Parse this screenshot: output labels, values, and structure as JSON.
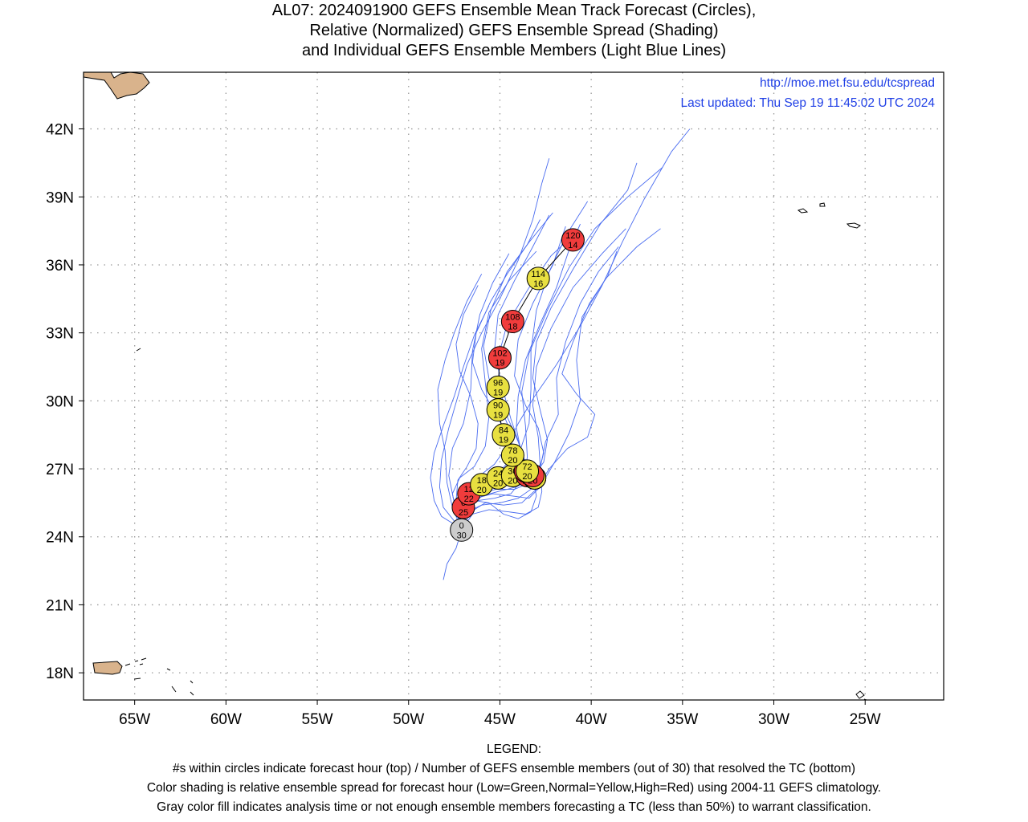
{
  "title": {
    "line1": "AL07: 2024091900 GEFS Ensemble Mean Track Forecast (Circles),",
    "line2": "Relative (Normalized) GEFS Ensemble Spread (Shading)",
    "line3": "and Individual GEFS Ensemble Members (Light Blue Lines)"
  },
  "info": {
    "url": "http://moe.met.fsu.edu/tcspread",
    "updated": "Last updated: Thu Sep 19 11:45:02 UTC 2024"
  },
  "axes": {
    "lat_ticks": [
      {
        "value": 18,
        "label": "18N"
      },
      {
        "value": 21,
        "label": "21N"
      },
      {
        "value": 24,
        "label": "24N"
      },
      {
        "value": 27,
        "label": "27N"
      },
      {
        "value": 30,
        "label": "30N"
      },
      {
        "value": 33,
        "label": "33N"
      },
      {
        "value": 36,
        "label": "36N"
      },
      {
        "value": 39,
        "label": "39N"
      },
      {
        "value": 42,
        "label": "42N"
      }
    ],
    "lon_ticks": [
      {
        "value": -65,
        "label": "65W"
      },
      {
        "value": -60,
        "label": "60W"
      },
      {
        "value": -55,
        "label": "55W"
      },
      {
        "value": -50,
        "label": "50W"
      },
      {
        "value": -45,
        "label": "45W"
      },
      {
        "value": -40,
        "label": "40W"
      },
      {
        "value": -35,
        "label": "35W"
      },
      {
        "value": -30,
        "label": "30W"
      },
      {
        "value": -25,
        "label": "25W"
      }
    ],
    "lon_range": [
      -67.8,
      -20.7
    ],
    "lat_range": [
      16.8,
      44.5
    ],
    "grid": true
  },
  "colors": {
    "low_spread": "#2fcf2f",
    "normal_spread": "#e8e040",
    "high_spread": "#f03c3c",
    "analysis": "#cccccc",
    "member_lines": "#4a6cf0",
    "land": "#d9b38c",
    "info_text": "#1f3fe6"
  },
  "mean_track": [
    {
      "hour": 0,
      "members": 30,
      "lat": 24.3,
      "lon": -47.1,
      "spread": "gray"
    },
    {
      "hour": 6,
      "members": 25,
      "lat": 25.3,
      "lon": -47.0,
      "spread": "red"
    },
    {
      "hour": 12,
      "members": 22,
      "lat": 25.9,
      "lon": -46.7,
      "spread": "red"
    },
    {
      "hour": 18,
      "members": 20,
      "lat": 26.3,
      "lon": -46.0,
      "spread": "yellow"
    },
    {
      "hour": 24,
      "members": 20,
      "lat": 26.6,
      "lon": -45.1,
      "spread": "yellow"
    },
    {
      "hour": 30,
      "members": 20,
      "lat": 26.7,
      "lon": -44.3,
      "spread": "yellow"
    },
    {
      "hour": 36,
      "members": 20,
      "lat": 26.7,
      "lon": -43.5,
      "spread": "red"
    },
    {
      "hour": 42,
      "members": 20,
      "lat": 26.9,
      "lon": -43.6,
      "spread": "red"
    },
    {
      "hour": 48,
      "members": 20,
      "lat": 26.6,
      "lon": -43.1,
      "spread": "yellow"
    },
    {
      "hour": 54,
      "members": 20,
      "lat": 26.6,
      "lon": -43.1,
      "spread": "yellow"
    },
    {
      "hour": 60,
      "members": 20,
      "lat": 26.6,
      "lon": -43.1,
      "spread": "yellow"
    },
    {
      "hour": 66,
      "members": 20,
      "lat": 26.7,
      "lon": -43.2,
      "spread": "red"
    },
    {
      "hour": 72,
      "members": 20,
      "lat": 26.9,
      "lon": -43.5,
      "spread": "yellow"
    },
    {
      "hour": 78,
      "members": 20,
      "lat": 27.6,
      "lon": -44.3,
      "spread": "yellow"
    },
    {
      "hour": 84,
      "members": 19,
      "lat": 28.5,
      "lon": -44.8,
      "spread": "yellow"
    },
    {
      "hour": 90,
      "members": 19,
      "lat": 29.6,
      "lon": -45.1,
      "spread": "yellow"
    },
    {
      "hour": 96,
      "members": 19,
      "lat": 30.6,
      "lon": -45.1,
      "spread": "yellow"
    },
    {
      "hour": 102,
      "members": 19,
      "lat": 31.9,
      "lon": -45.0,
      "spread": "red"
    },
    {
      "hour": 108,
      "members": 18,
      "lat": 33.5,
      "lon": -44.3,
      "spread": "red"
    },
    {
      "hour": 114,
      "members": 16,
      "lat": 35.4,
      "lon": -42.9,
      "spread": "yellow"
    },
    {
      "hour": 120,
      "members": 14,
      "lat": 37.1,
      "lon": -41.0,
      "spread": "red"
    }
  ],
  "member_tracks": [
    [
      [
        -47.1,
        24.3
      ],
      [
        -46.9,
        25.4
      ],
      [
        -46.5,
        26.0
      ],
      [
        -45.7,
        26.3
      ],
      [
        -44.8,
        26.6
      ],
      [
        -44.0,
        26.8
      ],
      [
        -43.6,
        27.3
      ],
      [
        -44.0,
        28.2
      ],
      [
        -44.6,
        29.3
      ],
      [
        -45.0,
        30.5
      ],
      [
        -45.1,
        31.9
      ],
      [
        -44.6,
        33.4
      ],
      [
        -43.4,
        35.0
      ],
      [
        -42.2,
        36.4
      ],
      [
        -41.0,
        37.3
      ]
    ],
    [
      [
        -47.1,
        24.3
      ],
      [
        -47.2,
        25.2
      ],
      [
        -46.9,
        26.0
      ],
      [
        -46.0,
        26.5
      ],
      [
        -45.0,
        26.9
      ],
      [
        -44.3,
        27.5
      ],
      [
        -44.4,
        28.6
      ],
      [
        -45.0,
        29.8
      ],
      [
        -45.6,
        31.0
      ],
      [
        -45.9,
        32.4
      ],
      [
        -45.5,
        34.0
      ],
      [
        -44.6,
        35.7
      ],
      [
        -43.4,
        37.0
      ],
      [
        -42.1,
        38.3
      ]
    ],
    [
      [
        -47.1,
        24.3
      ],
      [
        -46.7,
        25.3
      ],
      [
        -46.1,
        25.9
      ],
      [
        -45.2,
        26.1
      ],
      [
        -44.2,
        26.1
      ],
      [
        -43.3,
        26.4
      ],
      [
        -42.8,
        27.2
      ],
      [
        -42.9,
        28.4
      ],
      [
        -43.2,
        29.8
      ],
      [
        -43.0,
        31.5
      ],
      [
        -42.2,
        33.2
      ],
      [
        -41.0,
        35.0
      ],
      [
        -39.4,
        36.5
      ],
      [
        -38.1,
        37.6
      ]
    ],
    [
      [
        -47.1,
        24.3
      ],
      [
        -47.4,
        25.1
      ],
      [
        -47.6,
        25.9
      ],
      [
        -47.2,
        26.6
      ],
      [
        -46.4,
        27.1
      ],
      [
        -45.8,
        28.0
      ],
      [
        -45.6,
        29.3
      ],
      [
        -45.8,
        30.8
      ],
      [
        -46.0,
        32.3
      ],
      [
        -45.6,
        33.9
      ],
      [
        -44.5,
        35.3
      ],
      [
        -43.0,
        36.6
      ]
    ],
    [
      [
        -47.1,
        24.3
      ],
      [
        -46.8,
        25.2
      ],
      [
        -46.3,
        25.7
      ],
      [
        -45.4,
        25.9
      ],
      [
        -44.3,
        25.8
      ],
      [
        -43.4,
        25.7
      ],
      [
        -42.8,
        26.2
      ],
      [
        -42.0,
        27.3
      ],
      [
        -41.2,
        28.6
      ],
      [
        -40.6,
        30.0
      ],
      [
        -40.8,
        31.8
      ],
      [
        -40.5,
        33.7
      ],
      [
        -39.2,
        35.4
      ],
      [
        -37.5,
        36.8
      ],
      [
        -36.2,
        37.6
      ]
    ],
    [
      [
        -47.1,
        24.3
      ],
      [
        -47.5,
        25.5
      ],
      [
        -47.8,
        26.7
      ],
      [
        -47.6,
        27.9
      ],
      [
        -47.0,
        29.0
      ],
      [
        -46.6,
        30.5
      ],
      [
        -46.5,
        32.2
      ],
      [
        -46.1,
        33.8
      ],
      [
        -45.4,
        35.2
      ],
      [
        -44.5,
        36.5
      ]
    ],
    [
      [
        -47.1,
        24.3
      ],
      [
        -46.6,
        25.1
      ],
      [
        -45.8,
        25.5
      ],
      [
        -44.8,
        25.4
      ],
      [
        -43.8,
        25.5
      ],
      [
        -43.0,
        26.1
      ],
      [
        -42.3,
        27.0
      ],
      [
        -41.3,
        27.9
      ],
      [
        -40.2,
        28.4
      ],
      [
        -39.8,
        29.4
      ],
      [
        -40.8,
        30.3
      ],
      [
        -41.6,
        31.2
      ],
      [
        -41.0,
        32.6
      ],
      [
        -40.1,
        34.3
      ],
      [
        -39.1,
        35.5
      ],
      [
        -38.6,
        36.6
      ]
    ],
    [
      [
        -47.1,
        24.3
      ],
      [
        -47.6,
        24.8
      ],
      [
        -48.1,
        25.3
      ],
      [
        -48.3,
        26.2
      ],
      [
        -48.2,
        27.4
      ],
      [
        -47.8,
        28.8
      ],
      [
        -47.3,
        30.2
      ],
      [
        -46.8,
        31.6
      ],
      [
        -46.0,
        33.0
      ],
      [
        -45.0,
        34.5
      ],
      [
        -44.0,
        36.2
      ],
      [
        -43.2,
        38.0
      ],
      [
        -42.7,
        39.6
      ],
      [
        -42.3,
        40.7
      ]
    ],
    [
      [
        -47.1,
        24.3
      ],
      [
        -46.9,
        25.2
      ],
      [
        -46.2,
        25.6
      ],
      [
        -45.3,
        25.7
      ],
      [
        -44.4,
        25.9
      ],
      [
        -43.8,
        26.5
      ],
      [
        -43.5,
        27.5
      ],
      [
        -43.6,
        28.9
      ],
      [
        -43.8,
        30.4
      ],
      [
        -43.4,
        32.1
      ],
      [
        -42.4,
        34.0
      ],
      [
        -41.2,
        35.9
      ],
      [
        -39.8,
        37.6
      ],
      [
        -38.0,
        39.0
      ],
      [
        -36.1,
        40.3
      ]
    ],
    [
      [
        -47.1,
        24.3
      ],
      [
        -47.3,
        25.0
      ],
      [
        -47.2,
        25.6
      ],
      [
        -46.5,
        26.0
      ],
      [
        -45.4,
        26.2
      ],
      [
        -44.4,
        26.3
      ],
      [
        -43.8,
        26.9
      ],
      [
        -43.9,
        28.0
      ],
      [
        -44.4,
        29.2
      ],
      [
        -44.9,
        30.7
      ],
      [
        -45.3,
        32.2
      ],
      [
        -45.1,
        33.8
      ],
      [
        -44.2,
        35.3
      ],
      [
        -43.2,
        36.8
      ],
      [
        -42.3,
        38.2
      ]
    ],
    [
      [
        -47.1,
        24.3
      ],
      [
        -47.6,
        25.3
      ],
      [
        -47.9,
        26.4
      ],
      [
        -48.0,
        27.8
      ],
      [
        -48.3,
        29.0
      ],
      [
        -48.4,
        30.5
      ],
      [
        -48.0,
        31.8
      ],
      [
        -47.5,
        33.0
      ],
      [
        -46.8,
        34.4
      ],
      [
        -46.0,
        35.6
      ]
    ],
    [
      [
        -47.1,
        24.3
      ],
      [
        -46.5,
        25.0
      ],
      [
        -45.6,
        25.2
      ],
      [
        -44.5,
        25.1
      ],
      [
        -43.6,
        25.0
      ],
      [
        -42.9,
        25.3
      ],
      [
        -42.7,
        26.0
      ],
      [
        -42.8,
        27.0
      ],
      [
        -42.5,
        28.2
      ],
      [
        -41.8,
        29.4
      ],
      [
        -41.9,
        31.0
      ],
      [
        -41.4,
        32.6
      ],
      [
        -40.6,
        34.3
      ],
      [
        -39.6,
        35.7
      ],
      [
        -38.5,
        36.8
      ]
    ],
    [
      [
        -47.1,
        24.3
      ],
      [
        -47.3,
        25.4
      ],
      [
        -46.9,
        26.2
      ],
      [
        -46.1,
        26.7
      ],
      [
        -45.3,
        27.2
      ],
      [
        -44.6,
        28.0
      ],
      [
        -44.0,
        29.0
      ],
      [
        -43.1,
        30.2
      ],
      [
        -41.9,
        31.6
      ],
      [
        -40.6,
        33.3
      ],
      [
        -39.4,
        35.1
      ],
      [
        -38.3,
        37.0
      ],
      [
        -37.1,
        38.9
      ],
      [
        -35.6,
        41.0
      ],
      [
        -34.6,
        42.0
      ]
    ],
    [
      [
        -47.1,
        24.3
      ],
      [
        -47.0,
        25.3
      ],
      [
        -46.6,
        25.9
      ],
      [
        -45.8,
        26.2
      ],
      [
        -44.9,
        26.6
      ],
      [
        -44.4,
        27.3
      ],
      [
        -44.5,
        28.3
      ],
      [
        -45.2,
        29.4
      ],
      [
        -46.0,
        30.5
      ],
      [
        -46.5,
        31.7
      ],
      [
        -46.3,
        33.0
      ],
      [
        -45.5,
        34.4
      ],
      [
        -44.6,
        35.6
      ],
      [
        -43.5,
        36.9
      ],
      [
        -42.8,
        38.0
      ]
    ],
    [
      [
        -47.1,
        24.3
      ],
      [
        -46.7,
        25.2
      ],
      [
        -46.0,
        25.8
      ],
      [
        -45.1,
        26.0
      ],
      [
        -44.1,
        26.2
      ],
      [
        -43.2,
        26.6
      ],
      [
        -42.6,
        27.3
      ],
      [
        -42.4,
        28.3
      ],
      [
        -42.8,
        29.6
      ],
      [
        -43.2,
        31.0
      ],
      [
        -43.0,
        32.6
      ],
      [
        -42.2,
        34.1
      ],
      [
        -41.0,
        35.8
      ],
      [
        -39.5,
        37.8
      ],
      [
        -38.0,
        39.3
      ],
      [
        -37.5,
        40.5
      ]
    ],
    [
      [
        -47.1,
        24.3
      ],
      [
        -47.4,
        25.6
      ],
      [
        -47.3,
        26.5
      ],
      [
        -46.8,
        27.1
      ],
      [
        -46.3,
        27.9
      ],
      [
        -46.2,
        29.0
      ],
      [
        -46.6,
        30.2
      ],
      [
        -47.2,
        31.3
      ],
      [
        -47.4,
        32.5
      ],
      [
        -47.0,
        33.8
      ],
      [
        -46.2,
        35.1
      ]
    ],
    [
      [
        -47.1,
        24.3
      ],
      [
        -46.8,
        25.1
      ],
      [
        -46.0,
        25.4
      ],
      [
        -45.0,
        25.5
      ],
      [
        -44.0,
        25.7
      ],
      [
        -43.3,
        26.1
      ],
      [
        -42.9,
        26.8
      ],
      [
        -42.6,
        27.7
      ],
      [
        -42.9,
        28.8
      ],
      [
        -43.6,
        29.8
      ],
      [
        -44.2,
        31.1
      ],
      [
        -44.0,
        32.7
      ],
      [
        -43.2,
        34.3
      ],
      [
        -42.1,
        36.0
      ],
      [
        -41.4,
        37.7
      ]
    ],
    [
      [
        -47.1,
        24.3
      ],
      [
        -47.6,
        24.6
      ],
      [
        -48.2,
        24.9
      ],
      [
        -48.6,
        25.6
      ],
      [
        -48.8,
        26.6
      ],
      [
        -48.6,
        27.7
      ],
      [
        -48.1,
        28.9
      ],
      [
        -47.5,
        30.2
      ],
      [
        -47.0,
        31.5
      ],
      [
        -46.4,
        32.9
      ],
      [
        -45.6,
        34.2
      ]
    ],
    [
      [
        -47.1,
        24.3
      ],
      [
        -46.8,
        25.2
      ],
      [
        -46.3,
        25.9
      ],
      [
        -45.6,
        26.4
      ],
      [
        -44.7,
        26.9
      ],
      [
        -43.9,
        27.8
      ],
      [
        -43.4,
        29.0
      ],
      [
        -43.3,
        30.5
      ],
      [
        -43.3,
        32.2
      ],
      [
        -43.0,
        34.0
      ],
      [
        -42.3,
        35.7
      ],
      [
        -41.3,
        37.4
      ],
      [
        -40.2,
        38.8
      ]
    ],
    [
      [
        -47.1,
        24.3
      ],
      [
        -47.4,
        23.5
      ],
      [
        -47.9,
        22.8
      ],
      [
        -48.1,
        22.1
      ]
    ],
    [
      [
        -47.1,
        24.3
      ],
      [
        -46.9,
        25.1
      ],
      [
        -46.4,
        25.6
      ],
      [
        -45.6,
        25.5
      ],
      [
        -44.8,
        25.0
      ],
      [
        -44.0,
        24.8
      ],
      [
        -43.3,
        25.1
      ],
      [
        -43.0,
        25.8
      ],
      [
        -43.2,
        26.6
      ],
      [
        -43.8,
        27.6
      ],
      [
        -44.1,
        28.8
      ],
      [
        -44.0,
        30.2
      ],
      [
        -43.6,
        31.8
      ],
      [
        -42.8,
        33.4
      ],
      [
        -41.9,
        35.0
      ],
      [
        -41.2,
        36.7
      ],
      [
        -40.6,
        37.8
      ]
    ]
  ],
  "legend": {
    "heading": "LEGEND:",
    "line1": "#s within circles indicate forecast hour (top) / Number of GEFS ensemble members (out of 30) that resolved the TC (bottom)",
    "line2": "Color shading is relative ensemble spread for forecast hour (Low=Green,Normal=Yellow,High=Red) using 2004-11 GEFS climatology.",
    "line3": "Gray color fill indicates analysis time or not enough ensemble members forecasting a TC (less than 50%) to warrant classification."
  }
}
